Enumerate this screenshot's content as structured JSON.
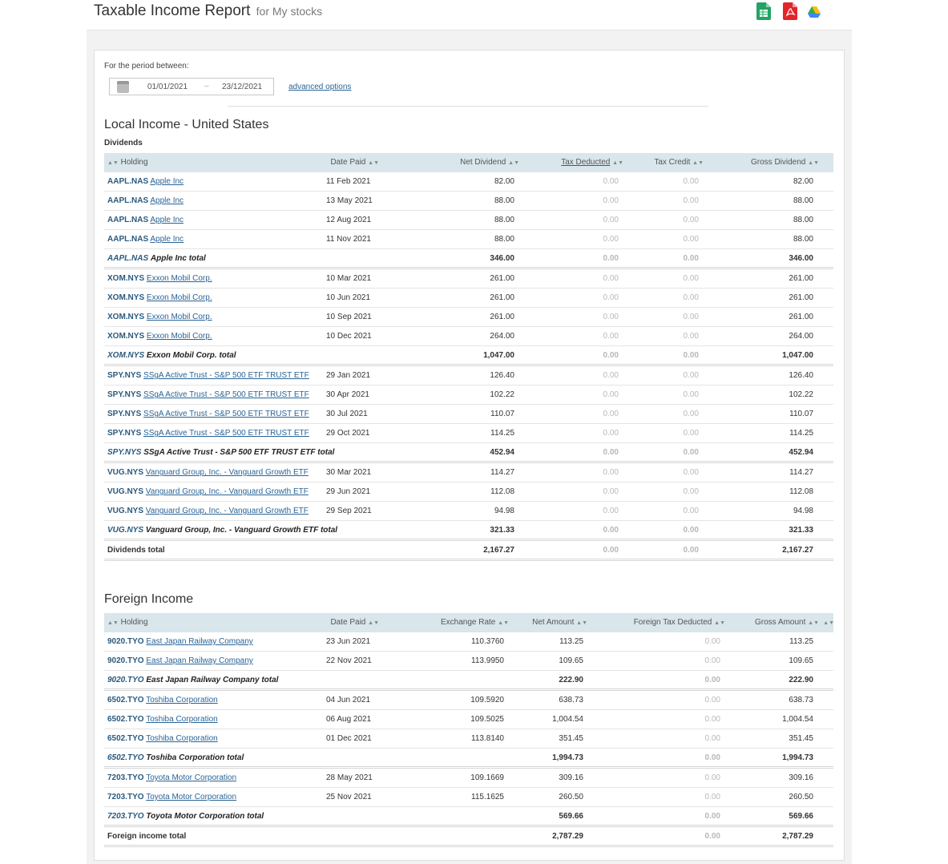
{
  "header": {
    "title": "Taxable Income Report",
    "subtitle": "for My stocks"
  },
  "export_icons": [
    "google-sheets-icon",
    "pdf-icon",
    "google-drive-icon"
  ],
  "period": {
    "label": "For the period between:",
    "start": "01/01/2021",
    "separator": "–",
    "end": "23/12/2021",
    "advanced_options": "advanced options"
  },
  "local": {
    "title": "Local Income - United States",
    "subtitle": "Dividends",
    "columns": [
      "Holding",
      "Date Paid",
      "Net Dividend",
      "Tax Deducted",
      "Tax Credit",
      "Gross Dividend"
    ],
    "rows": [
      {
        "type": "item",
        "ticker": "AAPL.NAS",
        "name": "Apple Inc",
        "date": "11 Feb 2021",
        "net": "82.00",
        "tax": "0.00",
        "credit": "0.00",
        "gross": "82.00"
      },
      {
        "type": "item",
        "ticker": "AAPL.NAS",
        "name": "Apple Inc",
        "date": "13 May 2021",
        "net": "88.00",
        "tax": "0.00",
        "credit": "0.00",
        "gross": "88.00"
      },
      {
        "type": "item",
        "ticker": "AAPL.NAS",
        "name": "Apple Inc",
        "date": "12 Aug 2021",
        "net": "88.00",
        "tax": "0.00",
        "credit": "0.00",
        "gross": "88.00"
      },
      {
        "type": "item",
        "ticker": "AAPL.NAS",
        "name": "Apple Inc",
        "date": "11 Nov 2021",
        "net": "88.00",
        "tax": "0.00",
        "credit": "0.00",
        "gross": "88.00"
      },
      {
        "type": "total",
        "ticker": "AAPL.NAS",
        "name": "Apple Inc total",
        "date": "",
        "net": "346.00",
        "tax": "0.00",
        "credit": "0.00",
        "gross": "346.00"
      },
      {
        "type": "item",
        "ticker": "XOM.NYS",
        "name": "Exxon Mobil Corp.",
        "date": "10 Mar 2021",
        "net": "261.00",
        "tax": "0.00",
        "credit": "0.00",
        "gross": "261.00"
      },
      {
        "type": "item",
        "ticker": "XOM.NYS",
        "name": "Exxon Mobil Corp.",
        "date": "10 Jun 2021",
        "net": "261.00",
        "tax": "0.00",
        "credit": "0.00",
        "gross": "261.00"
      },
      {
        "type": "item",
        "ticker": "XOM.NYS",
        "name": "Exxon Mobil Corp.",
        "date": "10 Sep 2021",
        "net": "261.00",
        "tax": "0.00",
        "credit": "0.00",
        "gross": "261.00"
      },
      {
        "type": "item",
        "ticker": "XOM.NYS",
        "name": "Exxon Mobil Corp.",
        "date": "10 Dec 2021",
        "net": "264.00",
        "tax": "0.00",
        "credit": "0.00",
        "gross": "264.00"
      },
      {
        "type": "total",
        "ticker": "XOM.NYS",
        "name": "Exxon Mobil Corp. total",
        "date": "",
        "net": "1,047.00",
        "tax": "0.00",
        "credit": "0.00",
        "gross": "1,047.00"
      },
      {
        "type": "item",
        "ticker": "SPY.NYS",
        "name": "SSgA Active Trust - S&P 500 ETF TRUST ETF",
        "date": "29 Jan 2021",
        "net": "126.40",
        "tax": "0.00",
        "credit": "0.00",
        "gross": "126.40"
      },
      {
        "type": "item",
        "ticker": "SPY.NYS",
        "name": "SSgA Active Trust - S&P 500 ETF TRUST ETF",
        "date": "30 Apr 2021",
        "net": "102.22",
        "tax": "0.00",
        "credit": "0.00",
        "gross": "102.22"
      },
      {
        "type": "item",
        "ticker": "SPY.NYS",
        "name": "SSgA Active Trust - S&P 500 ETF TRUST ETF",
        "date": "30 Jul 2021",
        "net": "110.07",
        "tax": "0.00",
        "credit": "0.00",
        "gross": "110.07"
      },
      {
        "type": "item",
        "ticker": "SPY.NYS",
        "name": "SSgA Active Trust - S&P 500 ETF TRUST ETF",
        "date": "29 Oct 2021",
        "net": "114.25",
        "tax": "0.00",
        "credit": "0.00",
        "gross": "114.25"
      },
      {
        "type": "total",
        "ticker": "SPY.NYS",
        "name": "SSgA Active Trust - S&P 500 ETF TRUST ETF total",
        "date": "",
        "net": "452.94",
        "tax": "0.00",
        "credit": "0.00",
        "gross": "452.94"
      },
      {
        "type": "item",
        "ticker": "VUG.NYS",
        "name": "Vanguard Group, Inc. - Vanguard Growth ETF",
        "date": "30 Mar 2021",
        "net": "114.27",
        "tax": "0.00",
        "credit": "0.00",
        "gross": "114.27"
      },
      {
        "type": "item",
        "ticker": "VUG.NYS",
        "name": "Vanguard Group, Inc. - Vanguard Growth ETF",
        "date": "29 Jun 2021",
        "net": "112.08",
        "tax": "0.00",
        "credit": "0.00",
        "gross": "112.08"
      },
      {
        "type": "item",
        "ticker": "VUG.NYS",
        "name": "Vanguard Group, Inc. - Vanguard Growth ETF",
        "date": "29 Sep 2021",
        "net": "94.98",
        "tax": "0.00",
        "credit": "0.00",
        "gross": "94.98"
      },
      {
        "type": "total",
        "ticker": "VUG.NYS",
        "name": "Vanguard Group, Inc. - Vanguard Growth ETF total",
        "date": "",
        "net": "321.33",
        "tax": "0.00",
        "credit": "0.00",
        "gross": "321.33"
      },
      {
        "type": "grand",
        "ticker": "",
        "name": "Dividends total",
        "date": "",
        "net": "2,167.27",
        "tax": "0.00",
        "credit": "0.00",
        "gross": "2,167.27"
      }
    ]
  },
  "foreign": {
    "title": "Foreign Income",
    "columns": [
      "Holding",
      "Date Paid",
      "Exchange Rate",
      "Net Amount",
      "Foreign Tax Deducted",
      "Gross Amount"
    ],
    "rows": [
      {
        "type": "item",
        "ticker": "9020.TYO",
        "name": "East Japan Railway Company",
        "date": "23 Jun 2021",
        "rate": "110.3760",
        "net": "113.25",
        "tax": "0.00",
        "gross": "113.25"
      },
      {
        "type": "item",
        "ticker": "9020.TYO",
        "name": "East Japan Railway Company",
        "date": "22 Nov 2021",
        "rate": "113.9950",
        "net": "109.65",
        "tax": "0.00",
        "gross": "109.65"
      },
      {
        "type": "total",
        "ticker": "9020.TYO",
        "name": "East Japan Railway Company total",
        "date": "",
        "rate": "",
        "net": "222.90",
        "tax": "0.00",
        "gross": "222.90"
      },
      {
        "type": "item",
        "ticker": "6502.TYO",
        "name": "Toshiba Corporation",
        "date": "04 Jun 2021",
        "rate": "109.5920",
        "net": "638.73",
        "tax": "0.00",
        "gross": "638.73"
      },
      {
        "type": "item",
        "ticker": "6502.TYO",
        "name": "Toshiba Corporation",
        "date": "06 Aug 2021",
        "rate": "109.5025",
        "net": "1,004.54",
        "tax": "0.00",
        "gross": "1,004.54"
      },
      {
        "type": "item",
        "ticker": "6502.TYO",
        "name": "Toshiba Corporation",
        "date": "01 Dec 2021",
        "rate": "113.8140",
        "net": "351.45",
        "tax": "0.00",
        "gross": "351.45"
      },
      {
        "type": "total",
        "ticker": "6502.TYO",
        "name": "Toshiba Corporation total",
        "date": "",
        "rate": "",
        "net": "1,994.73",
        "tax": "0.00",
        "gross": "1,994.73"
      },
      {
        "type": "item",
        "ticker": "7203.TYO",
        "name": "Toyota Motor Corporation",
        "date": "28 May 2021",
        "rate": "109.1669",
        "net": "309.16",
        "tax": "0.00",
        "gross": "309.16"
      },
      {
        "type": "item",
        "ticker": "7203.TYO",
        "name": "Toyota Motor Corporation",
        "date": "25 Nov 2021",
        "rate": "115.1625",
        "net": "260.50",
        "tax": "0.00",
        "gross": "260.50"
      },
      {
        "type": "total",
        "ticker": "7203.TYO",
        "name": "Toyota Motor Corporation total",
        "date": "",
        "rate": "",
        "net": "569.66",
        "tax": "0.00",
        "gross": "569.66"
      },
      {
        "type": "grand",
        "ticker": "",
        "name": "Foreign income total",
        "date": "",
        "rate": "",
        "net": "2,787.29",
        "tax": "0.00",
        "gross": "2,787.29"
      }
    ]
  }
}
